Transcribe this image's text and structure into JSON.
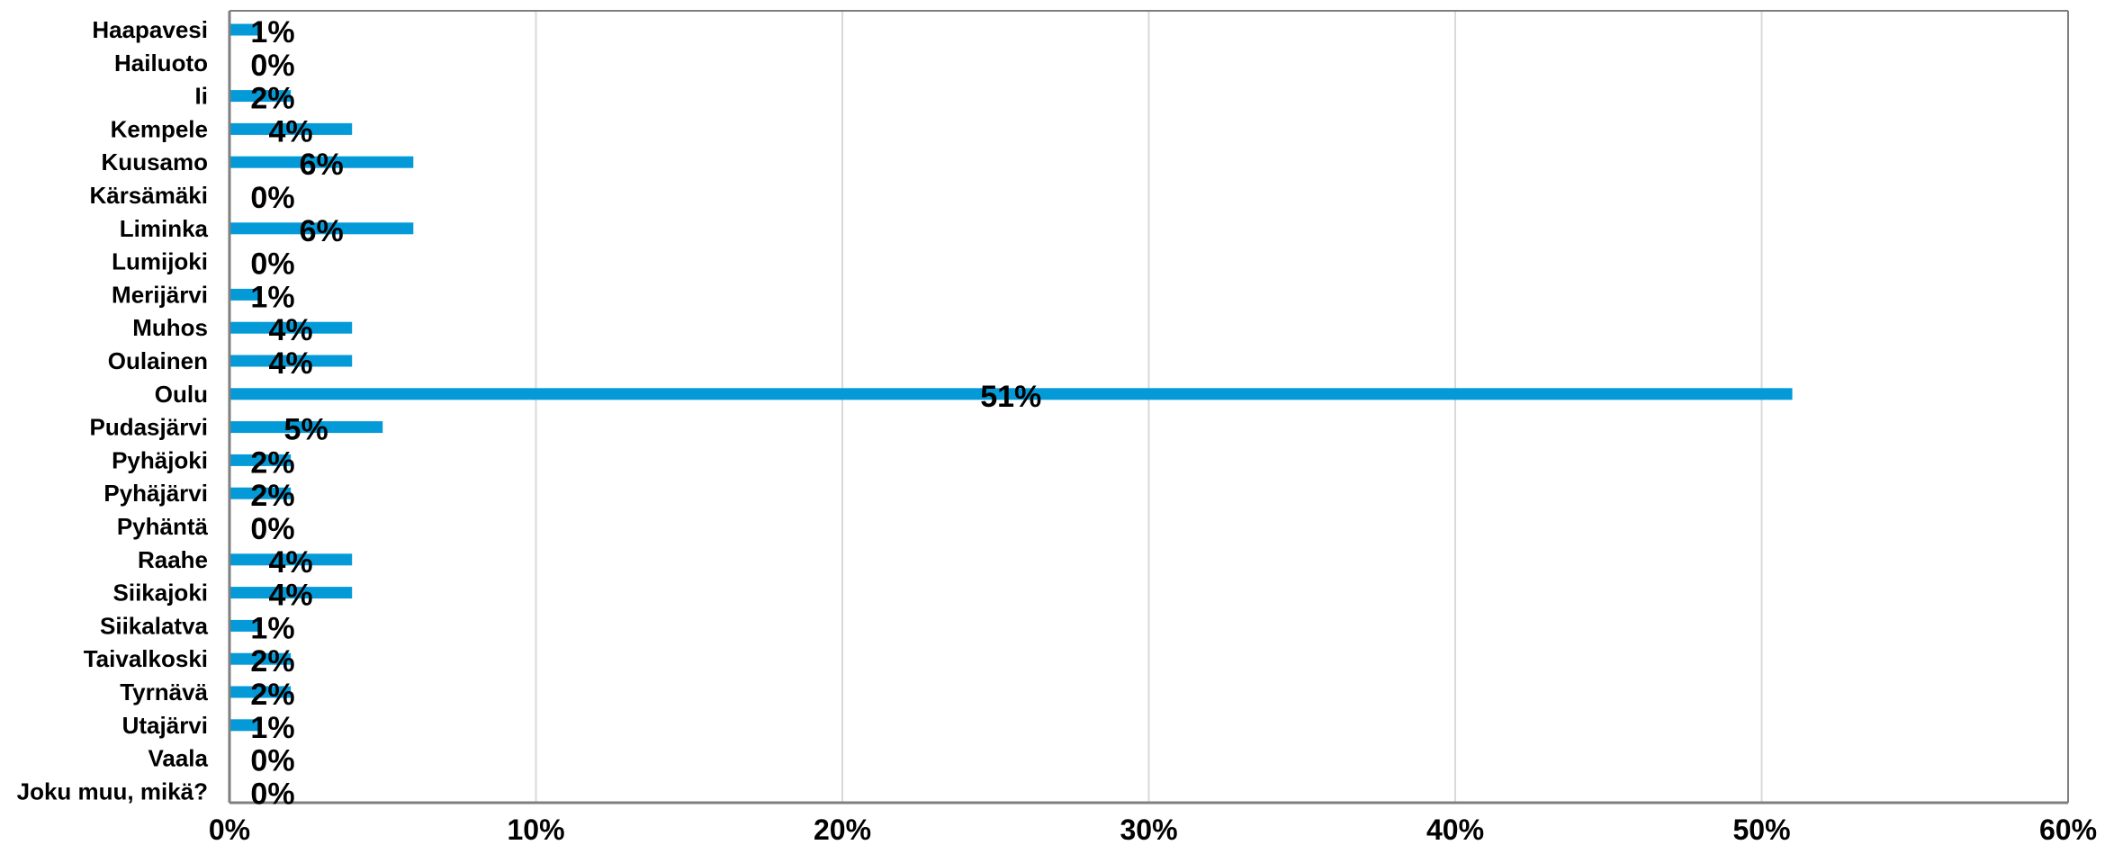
{
  "chart_data": {
    "type": "bar",
    "orientation": "horizontal",
    "categories": [
      "Haapavesi",
      "Hailuoto",
      "Ii",
      "Kempele",
      "Kuusamo",
      "Kärsämäki",
      "Liminka",
      "Lumijoki",
      "Merijärvi",
      "Muhos",
      "Oulainen",
      "Oulu",
      "Pudasjärvi",
      "Pyhäjoki",
      "Pyhäjärvi",
      "Pyhäntä",
      "Raahe",
      "Siikajoki",
      "Siikalatva",
      "Taivalkoski",
      "Tyrnävä",
      "Utajärvi",
      "Vaala",
      "Joku muu, mikä?"
    ],
    "values": [
      1,
      0,
      2,
      4,
      6,
      0,
      6,
      0,
      1,
      4,
      4,
      51,
      5,
      2,
      2,
      0,
      4,
      4,
      1,
      2,
      2,
      1,
      0,
      0
    ],
    "data_labels": [
      "1%",
      "0%",
      "2%",
      "4%",
      "6%",
      "0%",
      "6%",
      "0%",
      "1%",
      "4%",
      "4%",
      "51%",
      "5%",
      "2%",
      "2%",
      "0%",
      "4%",
      "4%",
      "1%",
      "2%",
      "2%",
      "1%",
      "0%",
      "0%"
    ],
    "xlim": [
      0,
      60
    ],
    "x_ticks": [
      0,
      10,
      20,
      30,
      40,
      50,
      60
    ],
    "x_tick_labels": [
      "0%",
      "10%",
      "20%",
      "30%",
      "40%",
      "50%",
      "60%"
    ],
    "grid": true,
    "legend": "none",
    "colors": {
      "bar": "#049ad8",
      "grid": "#d9d9d9",
      "axis": "#7f7f7f",
      "frame": "#7f7f7f"
    }
  }
}
